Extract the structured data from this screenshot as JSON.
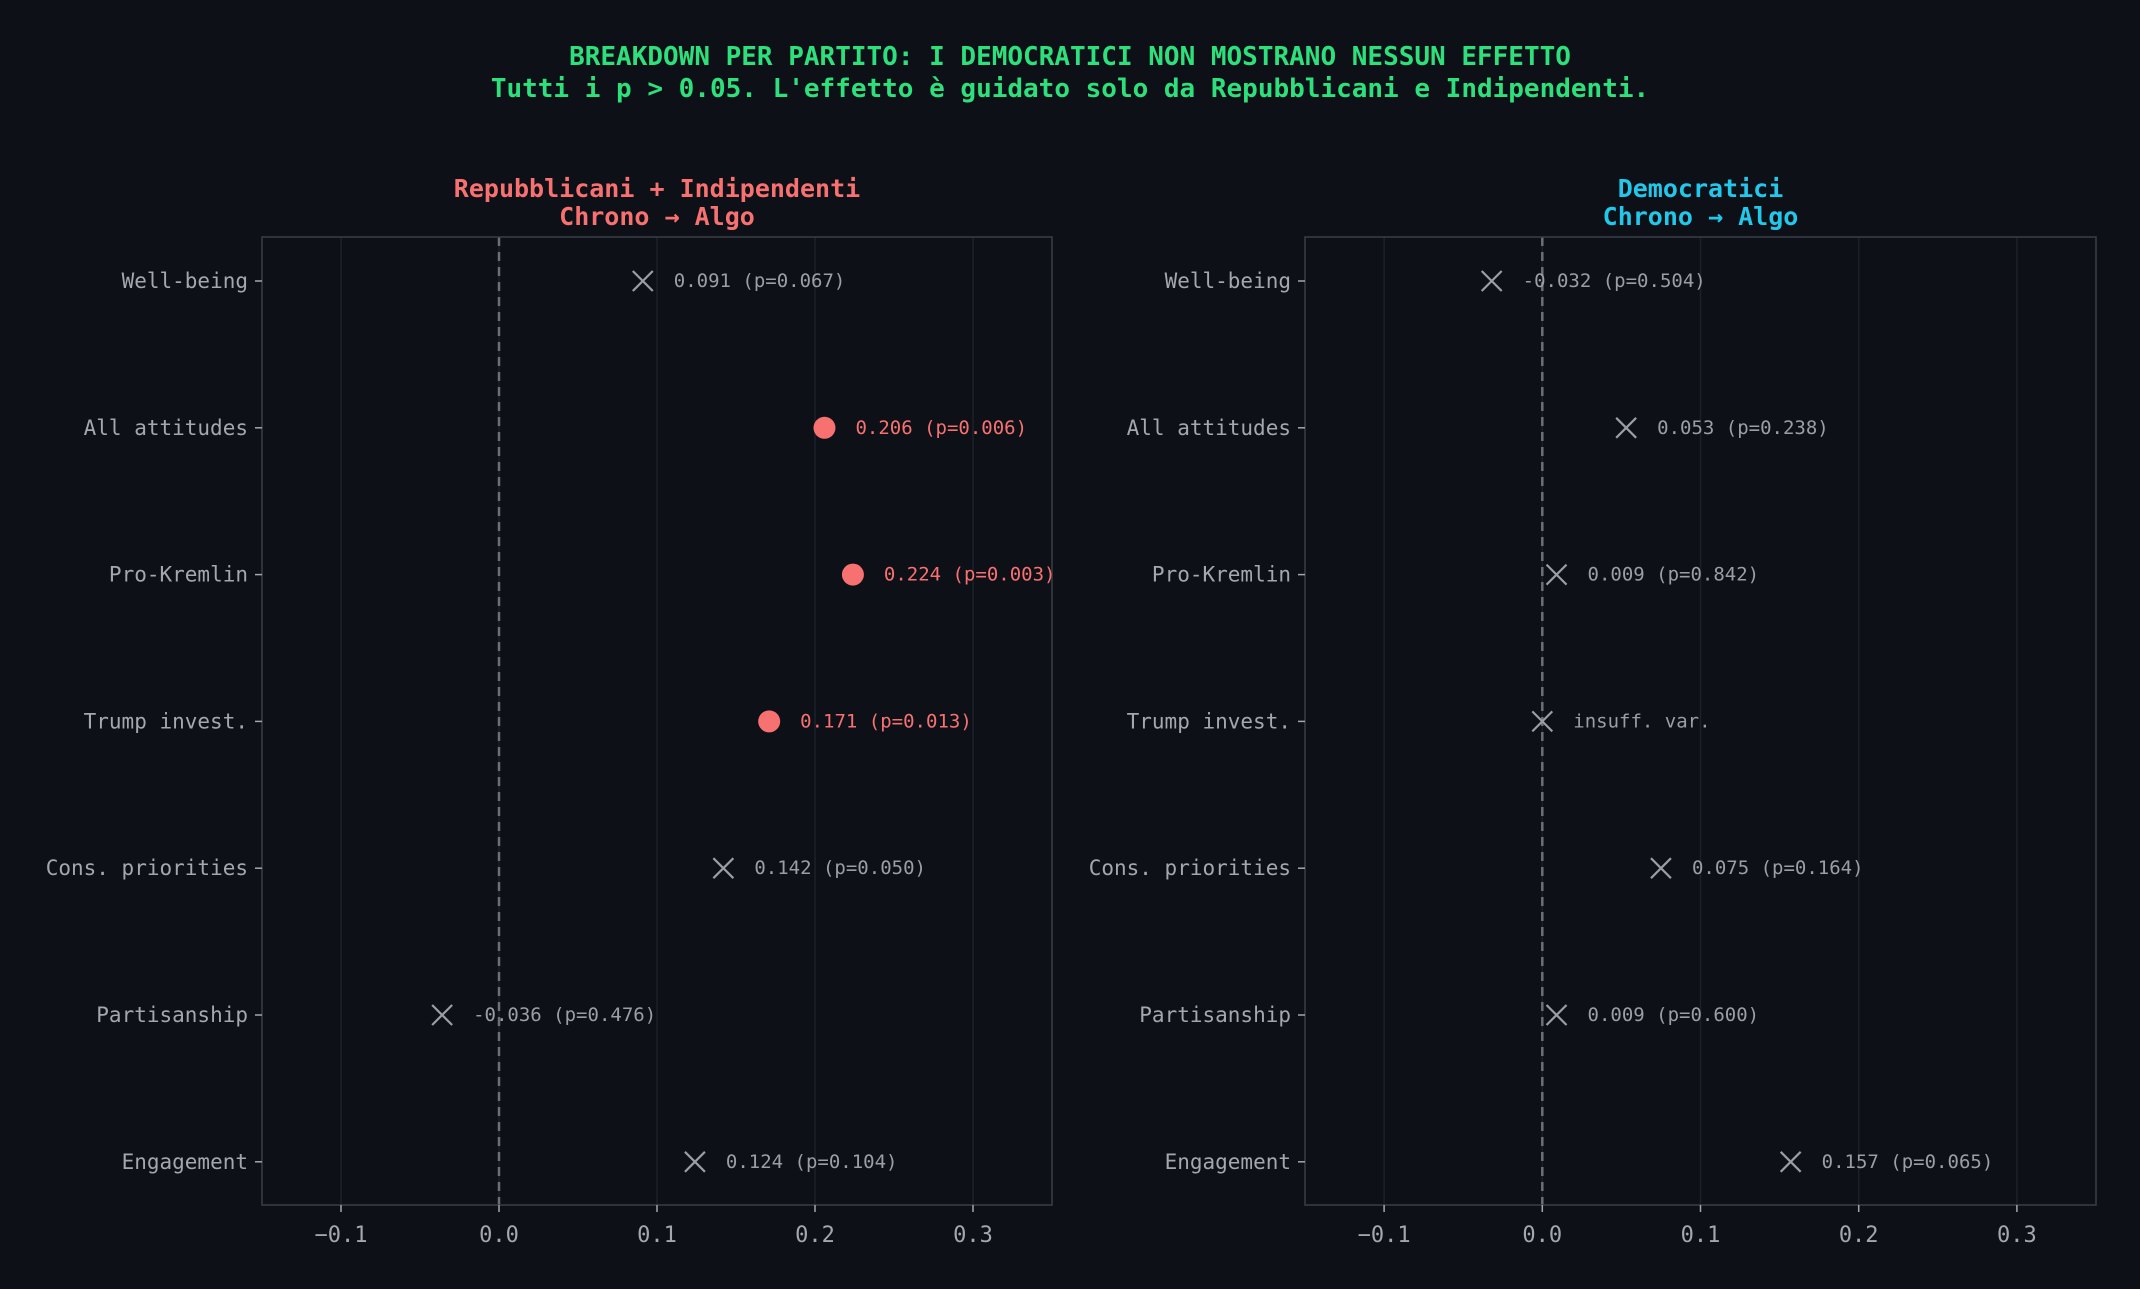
{
  "title": "BREAKDOWN PER PARTITO: I DEMOCRATICI NON MOSTRANO NESSUN EFFETTO",
  "subtitle": "Tutti i p > 0.05. L'effetto è guidato solo da Repubblicani e Indipendenti.",
  "colors": {
    "background": "#0d1017",
    "plot_background": "#0d1017",
    "title": "#2ee07c",
    "significant": "#f87171",
    "democrats": "#22c7ea",
    "nonsignificant": "#9a9ea6",
    "text": "#a3a7af",
    "frame": "#3a3e46",
    "grid": "#1c2028",
    "zero_line": "#6b6f77"
  },
  "chart_data": [
    {
      "type": "scatter",
      "title_line1": "Repubblicani + Indipendenti",
      "title_line2": "Chrono → Algo",
      "title_color": "#f87171",
      "xlim": [
        -0.15,
        0.35
      ],
      "xticks": [
        -0.1,
        0.0,
        0.1,
        0.2,
        0.3
      ],
      "xtick_labels": [
        "−0.1",
        "0.0",
        "0.1",
        "0.2",
        "0.3"
      ],
      "categories": [
        "Well-being",
        "All attitudes",
        "Pro-Kremlin",
        "Trump invest.",
        "Cons. priorities",
        "Partisanship",
        "Engagement"
      ],
      "points": [
        {
          "y": "Well-being",
          "x": 0.091,
          "significant": false,
          "label": "0.091 (p=0.067)"
        },
        {
          "y": "All attitudes",
          "x": 0.206,
          "significant": true,
          "label": "0.206 (p=0.006)"
        },
        {
          "y": "Pro-Kremlin",
          "x": 0.224,
          "significant": true,
          "label": "0.224 (p=0.003)"
        },
        {
          "y": "Trump invest.",
          "x": 0.171,
          "significant": true,
          "label": "0.171 (p=0.013)"
        },
        {
          "y": "Cons. priorities",
          "x": 0.142,
          "significant": false,
          "label": "0.142 (p=0.050)"
        },
        {
          "y": "Partisanship",
          "x": -0.036,
          "significant": false,
          "label": "-0.036 (p=0.476)"
        },
        {
          "y": "Engagement",
          "x": 0.124,
          "significant": false,
          "label": "0.124 (p=0.104)"
        }
      ],
      "reference_line_x": 0.0,
      "grid": true
    },
    {
      "type": "scatter",
      "title_line1": "Democratici",
      "title_line2": "Chrono → Algo",
      "title_color": "#22c7ea",
      "xlim": [
        -0.15,
        0.35
      ],
      "xticks": [
        -0.1,
        0.0,
        0.1,
        0.2,
        0.3
      ],
      "xtick_labels": [
        "−0.1",
        "0.0",
        "0.1",
        "0.2",
        "0.3"
      ],
      "categories": [
        "Well-being",
        "All attitudes",
        "Pro-Kremlin",
        "Trump invest.",
        "Cons. priorities",
        "Partisanship",
        "Engagement"
      ],
      "points": [
        {
          "y": "Well-being",
          "x": -0.032,
          "significant": false,
          "label": "-0.032 (p=0.504)"
        },
        {
          "y": "All attitudes",
          "x": 0.053,
          "significant": false,
          "label": "0.053 (p=0.238)"
        },
        {
          "y": "Pro-Kremlin",
          "x": 0.009,
          "significant": false,
          "label": "0.009 (p=0.842)"
        },
        {
          "y": "Trump invest.",
          "x": 0.0,
          "significant": false,
          "label": "insuff. var."
        },
        {
          "y": "Cons. priorities",
          "x": 0.075,
          "significant": false,
          "label": "0.075 (p=0.164)"
        },
        {
          "y": "Partisanship",
          "x": 0.009,
          "significant": false,
          "label": "0.009 (p=0.600)"
        },
        {
          "y": "Engagement",
          "x": 0.157,
          "significant": false,
          "label": "0.157 (p=0.065)"
        }
      ],
      "reference_line_x": 0.0,
      "grid": true
    }
  ]
}
